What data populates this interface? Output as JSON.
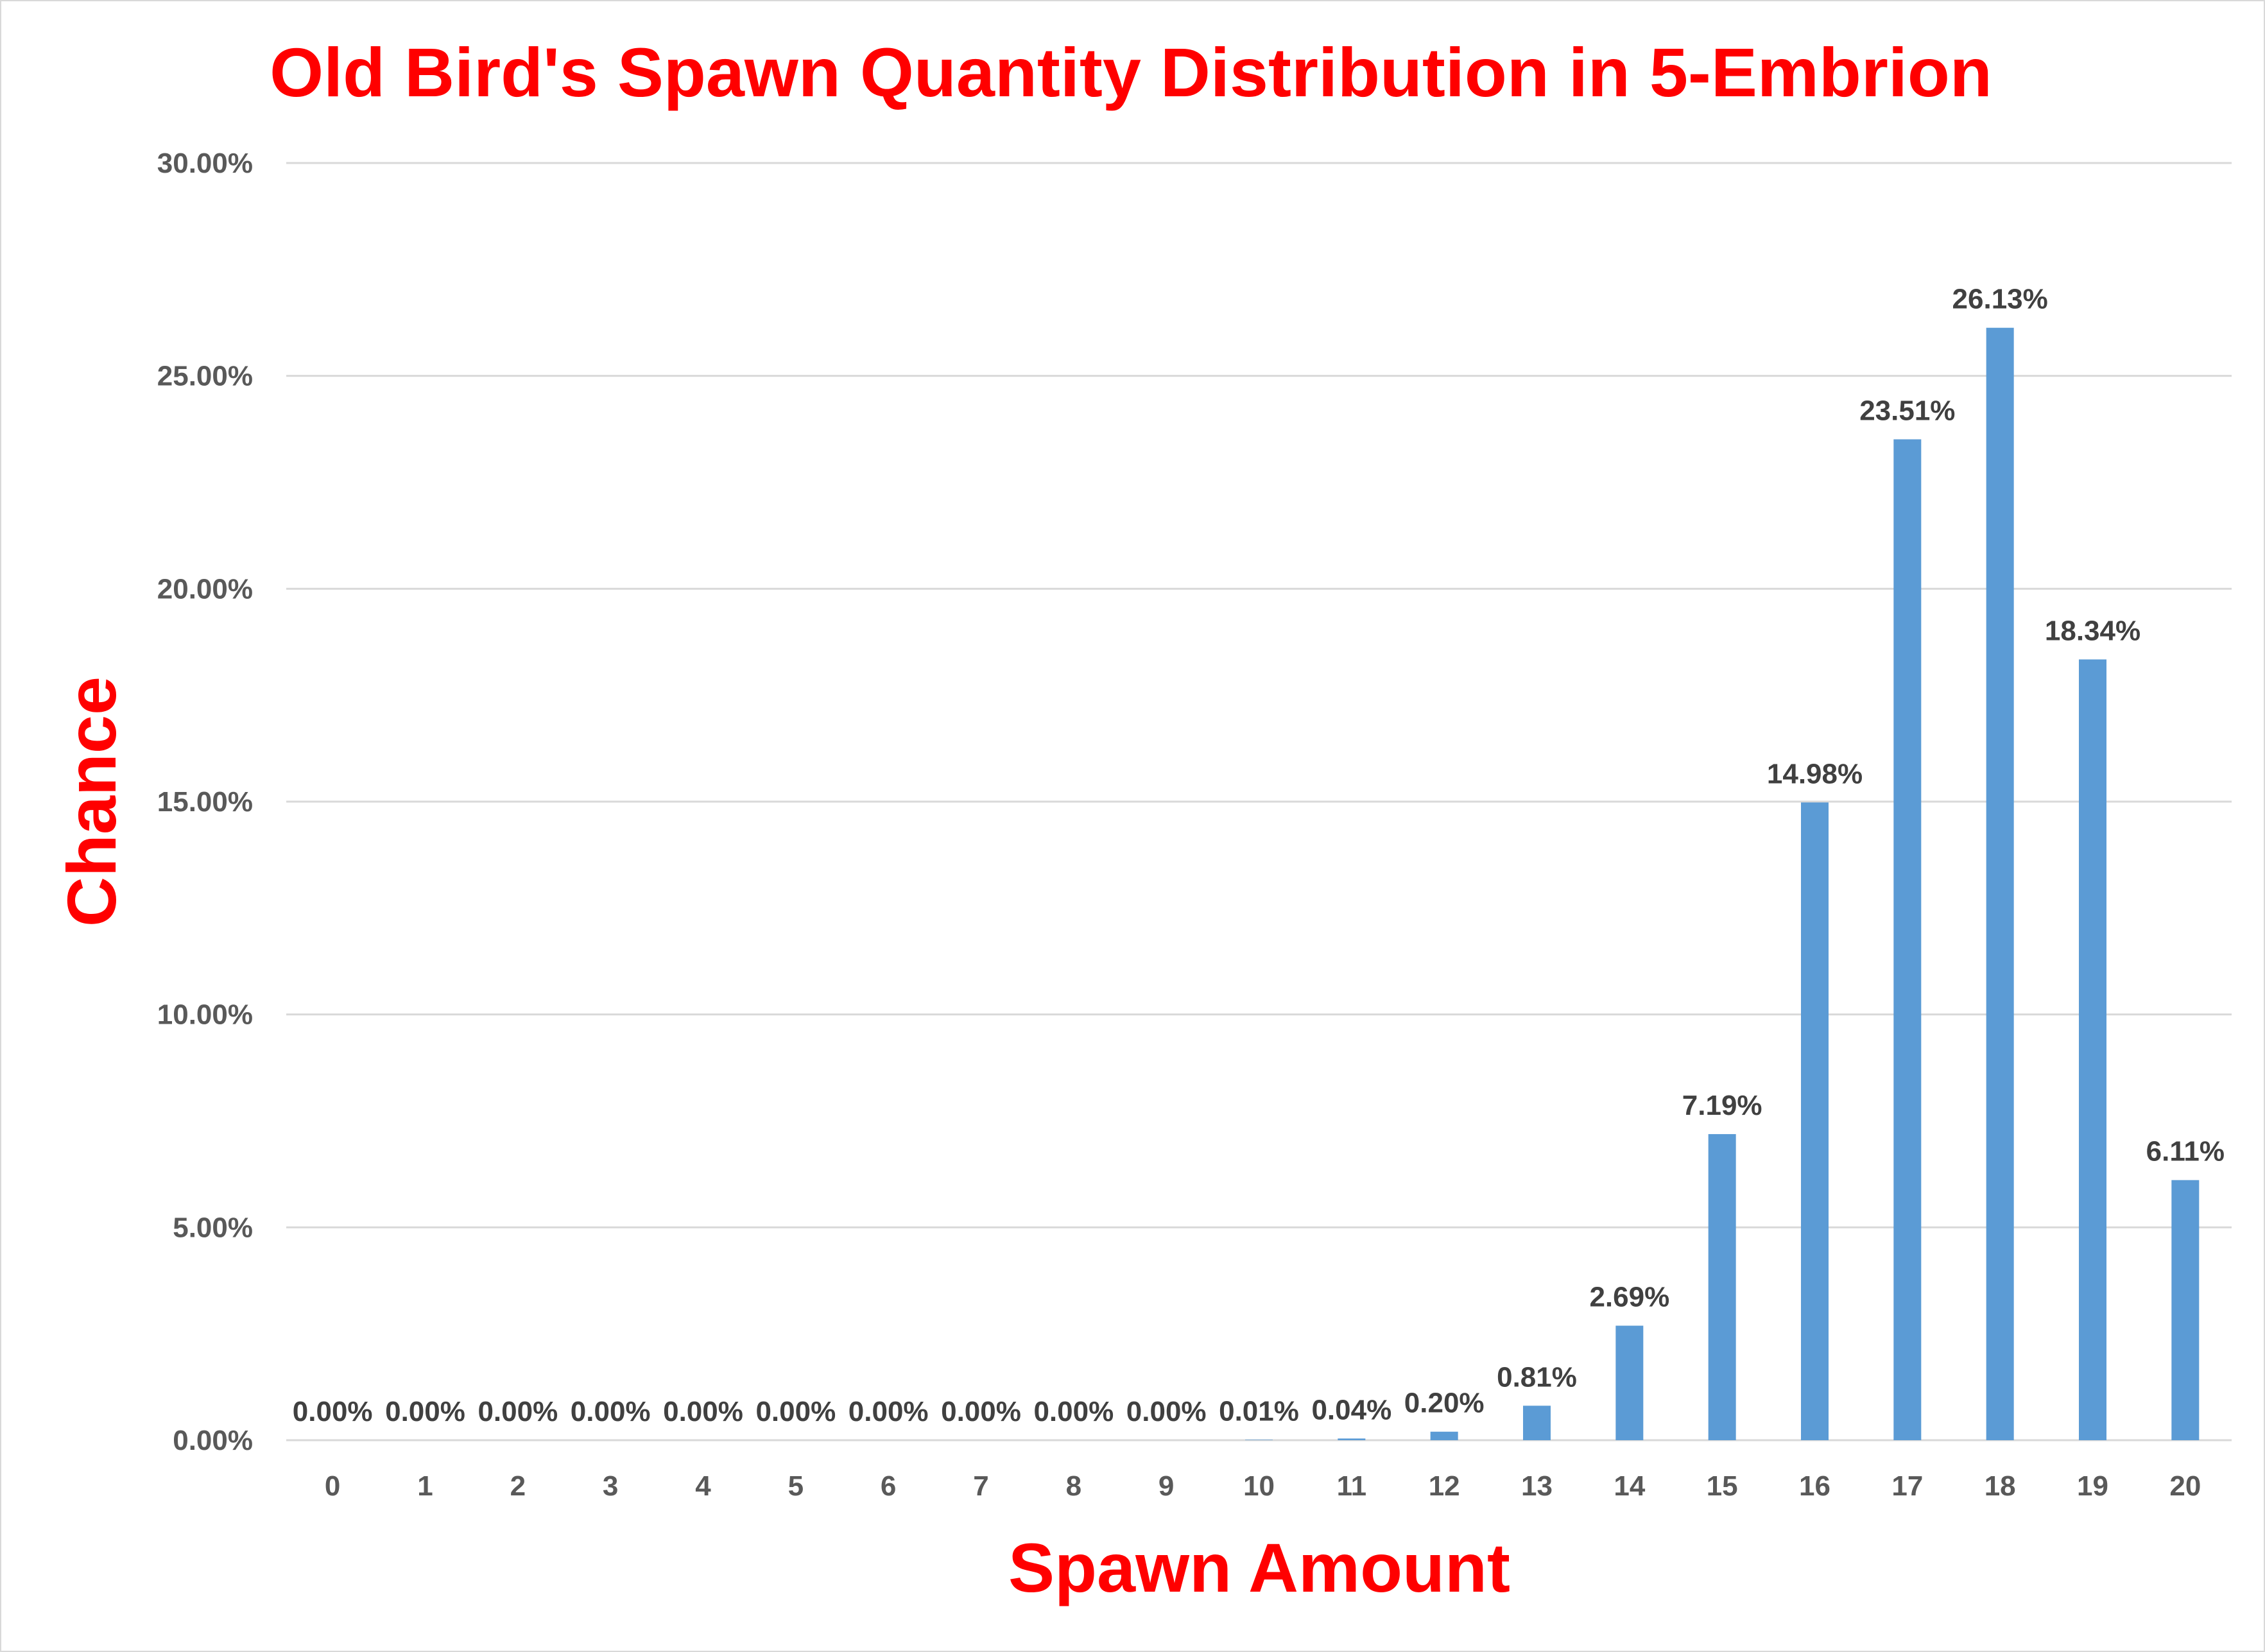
{
  "chart_data": {
    "type": "bar",
    "title": "Old Bird's Spawn Quantity Distribution in 5-Embrion",
    "xlabel": "Spawn Amount",
    "ylabel": "Chance",
    "categories": [
      "0",
      "1",
      "2",
      "3",
      "4",
      "5",
      "6",
      "7",
      "8",
      "9",
      "10",
      "11",
      "12",
      "13",
      "14",
      "15",
      "16",
      "17",
      "18",
      "19",
      "20"
    ],
    "values": [
      0,
      0,
      0,
      0,
      0,
      0,
      0,
      0,
      0,
      0,
      0.01,
      0.04,
      0.2,
      0.81,
      2.69,
      7.19,
      14.98,
      23.51,
      26.13,
      18.34,
      6.11
    ],
    "data_labels": [
      "0.00%",
      "0.00%",
      "0.00%",
      "0.00%",
      "0.00%",
      "0.00%",
      "0.00%",
      "0.00%",
      "0.00%",
      "0.00%",
      "0.01%",
      "0.04%",
      "0.20%",
      "0.81%",
      "2.69%",
      "7.19%",
      "14.98%",
      "23.51%",
      "26.13%",
      "18.34%",
      "6.11%"
    ],
    "yticks": [
      0,
      5,
      10,
      15,
      20,
      25,
      30
    ],
    "ytick_labels": [
      "0.00%",
      "5.00%",
      "10.00%",
      "15.00%",
      "20.00%",
      "25.00%",
      "30.00%"
    ],
    "ylim": [
      0,
      30
    ],
    "grid": true,
    "legend": "none",
    "colors": {
      "bar": "#5b9bd5",
      "title": "#ff0000",
      "grid": "#d9d9d9"
    }
  }
}
